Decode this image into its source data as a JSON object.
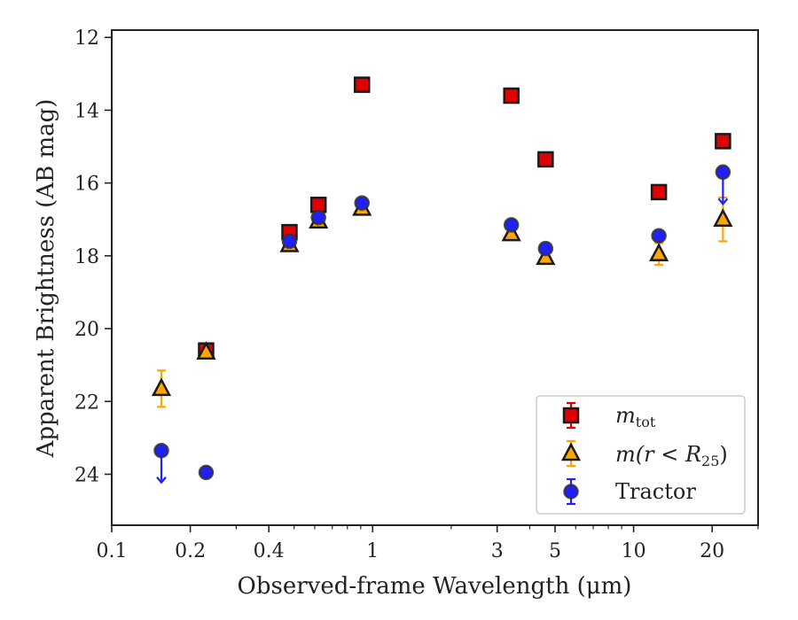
{
  "chart_data": {
    "type": "scatter",
    "xlabel": "Observed-frame Wavelength (μm)",
    "ylabel": "Apparent Brightness (AB mag)",
    "xscale": "log",
    "xlim": [
      0.1,
      30
    ],
    "ylim": [
      25.4,
      11.8
    ],
    "yaxis_inverted": true,
    "grid": false,
    "legend": "lower-right",
    "x_ticks": [
      0.1,
      0.2,
      0.4,
      1,
      3,
      5,
      10,
      20
    ],
    "x_tick_labels": [
      "0.1",
      "0.2",
      "0.4",
      "1",
      "3",
      "5",
      "10",
      "20"
    ],
    "y_ticks": [
      12,
      14,
      16,
      18,
      20,
      22,
      24
    ],
    "y_tick_labels": [
      "12",
      "14",
      "16",
      "18",
      "20",
      "22",
      "24"
    ],
    "series": [
      {
        "legend_label": "m_tot",
        "label_main": "m",
        "label_sub": "tot",
        "marker": "square",
        "color": "#e00000",
        "errorbar_color": "#e00000",
        "points": [
          {
            "x": 0.23,
            "y": 20.6
          },
          {
            "x": 0.48,
            "y": 17.35
          },
          {
            "x": 0.62,
            "y": 16.6
          },
          {
            "x": 0.91,
            "y": 13.3
          },
          {
            "x": 3.4,
            "y": 13.6
          },
          {
            "x": 4.6,
            "y": 15.35
          },
          {
            "x": 12.5,
            "y": 16.25
          },
          {
            "x": 22.0,
            "y": 14.85
          }
        ]
      },
      {
        "legend_label": "m(r < R25)",
        "label_main": "m(r < R",
        "label_sub": "25",
        "label_end": ")",
        "marker": "triangle",
        "color": "#ffa500",
        "errorbar_color": "#ffa500",
        "points": [
          {
            "x": 0.155,
            "y": 21.65,
            "yerr": 0.5
          },
          {
            "x": 0.23,
            "y": 20.65
          },
          {
            "x": 0.48,
            "y": 17.7
          },
          {
            "x": 0.62,
            "y": 17.05
          },
          {
            "x": 0.91,
            "y": 16.7
          },
          {
            "x": 3.4,
            "y": 17.4
          },
          {
            "x": 4.6,
            "y": 18.05
          },
          {
            "x": 12.5,
            "y": 17.95,
            "yerr": 0.3
          },
          {
            "x": 22.0,
            "y": 17.0,
            "yerr": 0.6
          }
        ]
      },
      {
        "legend_label": "Tractor",
        "marker": "circle",
        "color": "#1f1fff",
        "errorbar_color": "#1f1fff",
        "points": [
          {
            "x": 0.155,
            "y": 23.35,
            "upper_limit": true
          },
          {
            "x": 0.23,
            "y": 23.95
          },
          {
            "x": 0.48,
            "y": 17.6
          },
          {
            "x": 0.62,
            "y": 16.95
          },
          {
            "x": 0.91,
            "y": 16.55
          },
          {
            "x": 3.4,
            "y": 17.15
          },
          {
            "x": 4.6,
            "y": 17.8
          },
          {
            "x": 12.5,
            "y": 17.45
          },
          {
            "x": 22.0,
            "y": 15.7,
            "upper_limit": true
          }
        ]
      }
    ]
  }
}
